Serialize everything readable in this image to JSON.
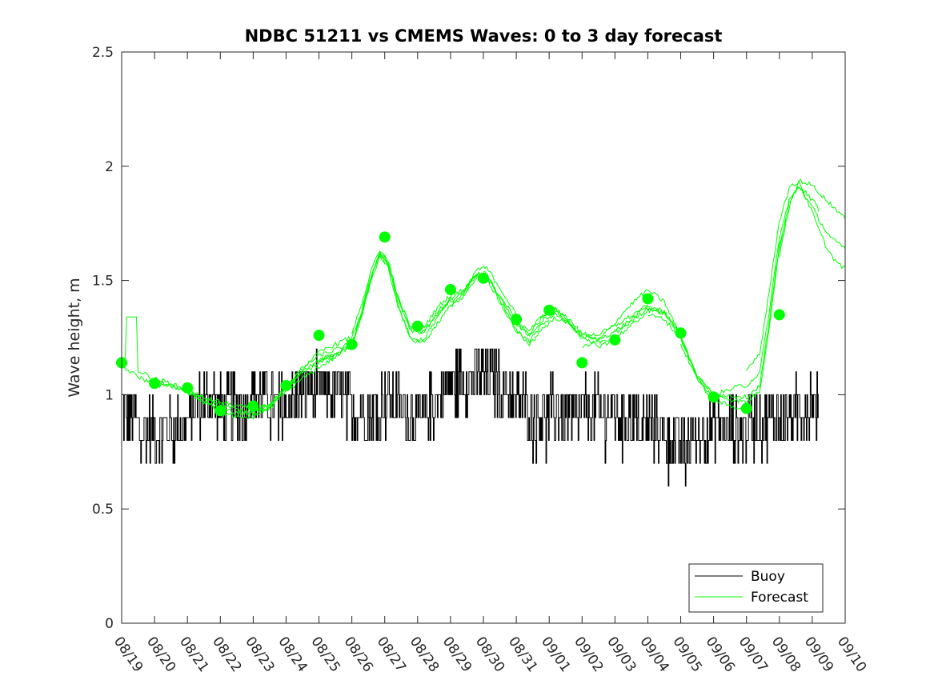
{
  "chart_data": {
    "type": "line",
    "title": "NDBC 51211 vs CMEMS Waves: 0 to 3 day forecast",
    "xlabel": "",
    "ylabel": "Wave height, m",
    "xlim": [
      0,
      22
    ],
    "ylim": [
      0,
      2.5
    ],
    "yticks": [
      0,
      0.5,
      1,
      1.5,
      2,
      2.5
    ],
    "ytick_labels": [
      "0",
      "0.5",
      "1",
      "1.5",
      "2",
      "2.5"
    ],
    "xtick_labels": [
      "08/19",
      "08/20",
      "08/21",
      "08/22",
      "08/23",
      "08/24",
      "08/25",
      "08/26",
      "08/27",
      "08/28",
      "08/29",
      "08/30",
      "08/31",
      "09/01",
      "09/02",
      "09/03",
      "09/04",
      "09/05",
      "09/06",
      "09/07",
      "09/08",
      "09/09",
      "09/10"
    ],
    "legend": {
      "position": "bottom-right",
      "entries": [
        {
          "label": "Buoy",
          "color": "#000000"
        },
        {
          "label": "Forecast",
          "color": "#00ff00"
        }
      ]
    },
    "colors": {
      "buoy": "#000000",
      "forecast": "#00ff00"
    },
    "buoy": {
      "name": "Buoy",
      "segments": [
        [
          0.0,
          0.93
        ],
        [
          0.3,
          0.9
        ],
        [
          0.6,
          0.85
        ],
        [
          0.9,
          0.85
        ],
        [
          1.2,
          0.85
        ],
        [
          1.5,
          0.85
        ],
        [
          1.8,
          0.86
        ],
        [
          2.1,
          0.92
        ],
        [
          2.4,
          0.97
        ],
        [
          2.7,
          0.98
        ],
        [
          3.0,
          0.95
        ],
        [
          3.3,
          0.95
        ],
        [
          3.6,
          0.93
        ],
        [
          3.9,
          0.98
        ],
        [
          4.2,
          1.0
        ],
        [
          4.5,
          0.98
        ],
        [
          4.8,
          0.95
        ],
        [
          5.1,
          0.97
        ],
        [
          5.4,
          1.0
        ],
        [
          5.7,
          1.03
        ],
        [
          6.0,
          1.03
        ],
        [
          6.3,
          1.02
        ],
        [
          6.6,
          1.0
        ],
        [
          6.9,
          0.97
        ],
        [
          7.2,
          0.93
        ],
        [
          7.5,
          0.92
        ],
        [
          7.8,
          0.95
        ],
        [
          8.1,
          0.98
        ],
        [
          8.4,
          0.97
        ],
        [
          8.7,
          0.92
        ],
        [
          9.0,
          0.9
        ],
        [
          9.3,
          0.93
        ],
        [
          9.6,
          0.97
        ],
        [
          9.9,
          1.03
        ],
        [
          10.2,
          1.05
        ],
        [
          10.5,
          1.07
        ],
        [
          10.8,
          1.08
        ],
        [
          11.1,
          1.07
        ],
        [
          11.4,
          1.05
        ],
        [
          11.7,
          1.02
        ],
        [
          12.0,
          0.98
        ],
        [
          12.3,
          0.95
        ],
        [
          12.6,
          0.93
        ],
        [
          12.9,
          0.92
        ],
        [
          13.2,
          0.93
        ],
        [
          13.5,
          0.92
        ],
        [
          13.8,
          0.92
        ],
        [
          14.1,
          0.93
        ],
        [
          14.4,
          0.93
        ],
        [
          14.7,
          0.92
        ],
        [
          15.0,
          0.92
        ],
        [
          15.3,
          0.9
        ],
        [
          15.6,
          0.88
        ],
        [
          15.9,
          0.88
        ],
        [
          16.2,
          0.87
        ],
        [
          16.5,
          0.85
        ],
        [
          16.8,
          0.8
        ],
        [
          17.1,
          0.78
        ],
        [
          17.4,
          0.83
        ],
        [
          17.7,
          0.85
        ],
        [
          18.0,
          0.86
        ],
        [
          18.3,
          0.85
        ],
        [
          18.6,
          0.85
        ],
        [
          18.9,
          0.85
        ],
        [
          19.2,
          0.87
        ],
        [
          19.5,
          0.87
        ],
        [
          19.8,
          0.88
        ],
        [
          20.1,
          0.9
        ],
        [
          20.4,
          0.92
        ],
        [
          20.7,
          0.95
        ],
        [
          21.0,
          0.98
        ],
        [
          21.2,
          0.92
        ]
      ]
    },
    "forecast": {
      "name": "Forecast",
      "markers": [
        [
          0.0,
          1.14
        ],
        [
          1.0,
          1.05
        ],
        [
          2.0,
          1.03
        ],
        [
          3.0,
          0.93
        ],
        [
          4.0,
          0.95
        ],
        [
          5.0,
          1.04
        ],
        [
          6.0,
          1.26
        ],
        [
          7.0,
          1.22
        ],
        [
          8.0,
          1.69
        ],
        [
          9.0,
          1.3
        ],
        [
          10.0,
          1.46
        ],
        [
          11.0,
          1.51
        ],
        [
          12.0,
          1.33
        ],
        [
          13.0,
          1.37
        ],
        [
          14.0,
          1.14
        ],
        [
          15.0,
          1.24
        ],
        [
          16.0,
          1.42
        ],
        [
          17.0,
          1.27
        ],
        [
          18.0,
          0.99
        ],
        [
          19.0,
          0.94
        ],
        [
          20.0,
          1.35
        ]
      ],
      "base_curve": [
        [
          0,
          1.14
        ],
        [
          0.5,
          1.1
        ],
        [
          1,
          1.06
        ],
        [
          1.5,
          1.04
        ],
        [
          2,
          1.01
        ],
        [
          2.5,
          0.97
        ],
        [
          3,
          0.94
        ],
        [
          3.5,
          0.92
        ],
        [
          4,
          0.92
        ],
        [
          4.5,
          0.95
        ],
        [
          5,
          1.03
        ],
        [
          5.5,
          1.1
        ],
        [
          6,
          1.15
        ],
        [
          6.5,
          1.18
        ],
        [
          7,
          1.22
        ],
        [
          7.3,
          1.35
        ],
        [
          7.6,
          1.52
        ],
        [
          7.85,
          1.62
        ],
        [
          8.1,
          1.58
        ],
        [
          8.4,
          1.42
        ],
        [
          8.8,
          1.28
        ],
        [
          9.2,
          1.28
        ],
        [
          9.6,
          1.36
        ],
        [
          10,
          1.42
        ],
        [
          10.4,
          1.45
        ],
        [
          10.8,
          1.53
        ],
        [
          11.1,
          1.52
        ],
        [
          11.5,
          1.42
        ],
        [
          12,
          1.3
        ],
        [
          12.4,
          1.25
        ],
        [
          12.8,
          1.32
        ],
        [
          13.2,
          1.36
        ],
        [
          13.6,
          1.32
        ],
        [
          14,
          1.26
        ],
        [
          14.5,
          1.24
        ],
        [
          15,
          1.27
        ],
        [
          15.5,
          1.32
        ],
        [
          16,
          1.38
        ],
        [
          16.5,
          1.36
        ],
        [
          17,
          1.26
        ],
        [
          17.5,
          1.08
        ],
        [
          18,
          0.98
        ],
        [
          18.5,
          0.95
        ],
        [
          19,
          0.94
        ],
        [
          19.4,
          1.0
        ],
        [
          19.7,
          1.3
        ],
        [
          20,
          1.65
        ],
        [
          20.3,
          1.85
        ],
        [
          20.6,
          1.95
        ],
        [
          21,
          1.9
        ],
        [
          21.5,
          1.8
        ],
        [
          22,
          1.72
        ]
      ],
      "runs": [
        {
          "start": 0.0,
          "end": 3.0,
          "dy": 0.01,
          "spike": [
            0.3,
            1.34
          ]
        },
        {
          "start": 0.0,
          "end": 4.8,
          "dy": -0.02
        },
        {
          "start": 1.0,
          "end": 6.5,
          "dy": 0.0
        },
        {
          "start": 2.0,
          "end": 7.5,
          "dy": -0.03
        },
        {
          "start": 3.0,
          "end": 8.0,
          "dy": 0.02
        },
        {
          "start": 4.0,
          "end": 9.0,
          "dy": -0.01
        },
        {
          "start": 5.0,
          "end": 10.0,
          "dy": 0.04
        },
        {
          "start": 6.0,
          "end": 11.0,
          "dy": 0.0
        },
        {
          "start": 7.0,
          "end": 12.0,
          "dy": 0.05
        },
        {
          "start": 8.0,
          "end": 13.0,
          "dy": -0.02
        },
        {
          "start": 9.0,
          "end": 14.0,
          "dy": 0.01
        },
        {
          "start": 10.0,
          "end": 15.0,
          "dy": 0.03
        },
        {
          "start": 11.0,
          "end": 16.0,
          "dy": -0.03
        },
        {
          "start": 12.0,
          "end": 17.0,
          "dy": 0.02
        },
        {
          "start": 13.0,
          "end": 18.0,
          "dy": -0.01
        },
        {
          "start": 14.0,
          "end": 17.0,
          "dy": -0.08
        },
        {
          "start": 15.0,
          "end": 19.0,
          "dy": 0.0
        },
        {
          "start": 16.0,
          "end": 20.2,
          "dy": 0.03
        },
        {
          "start": 17.0,
          "end": 21.2,
          "dy": 0.05
        },
        {
          "start": 18.0,
          "end": 22.0,
          "dy": 0.1
        },
        {
          "start": 19.0,
          "end": 22.0,
          "dy": 0.18
        },
        {
          "start": 20.0,
          "end": 22.0,
          "dy": -0.05
        }
      ]
    }
  }
}
